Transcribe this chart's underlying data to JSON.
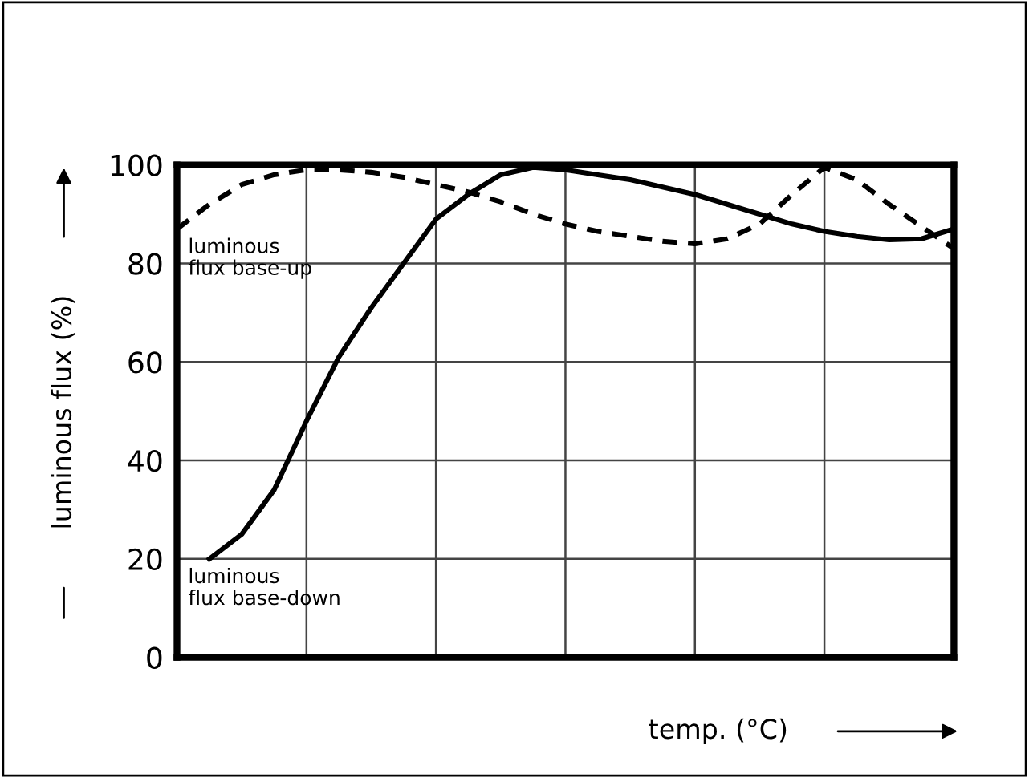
{
  "chart_data": {
    "type": "line",
    "xlabel": "temp. (°C)",
    "ylabel": "luminous flux (%)",
    "categories": [
      null,
      null,
      null,
      null,
      null,
      null,
      null,
      null,
      null,
      null,
      null,
      null,
      null,
      null,
      null,
      null,
      null,
      null,
      null,
      null,
      null,
      null,
      null,
      null,
      null
    ],
    "ylim": [
      0,
      100
    ],
    "yticks": [
      0,
      20,
      40,
      60,
      80,
      100
    ],
    "grid": true,
    "tick_labels": "y",
    "series": [
      {
        "name": "luminous flux base-up",
        "color": "#000000",
        "line_style": "dashed",
        "values": [
          87,
          92,
          96,
          98,
          99,
          99,
          98.5,
          97.5,
          96,
          94.5,
          92.5,
          90,
          88,
          86.5,
          85.5,
          84.5,
          84,
          85,
          88,
          94,
          99.5,
          97,
          92,
          87.5,
          83
        ]
      },
      {
        "name": "luminous flux base-down",
        "color": "#000000",
        "line_style": "solid",
        "values": [
          null,
          20,
          25,
          34,
          48,
          61,
          71,
          80,
          89,
          94,
          98,
          99.5,
          99,
          98,
          97,
          95.5,
          94,
          92,
          90,
          88,
          86.5,
          85.5,
          84.8,
          85,
          87
        ]
      }
    ]
  }
}
